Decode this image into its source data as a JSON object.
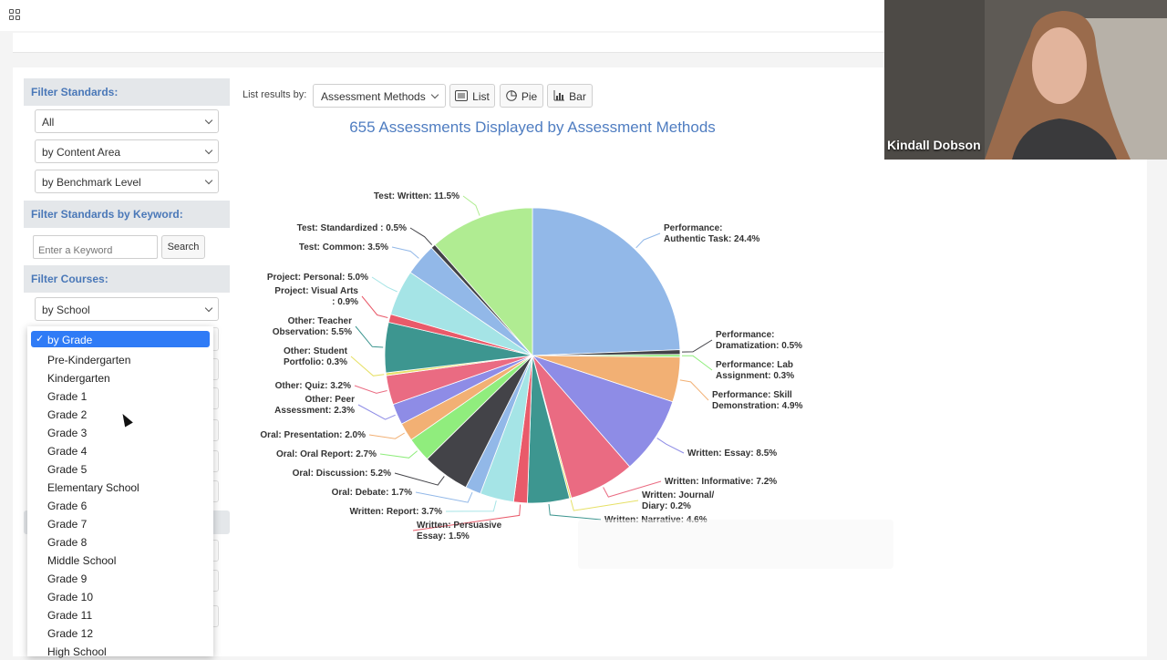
{
  "sidebar": {
    "filter_standards": {
      "heading": "Filter Standards:",
      "selects": [
        "All",
        "by Content Area",
        "by Benchmark Level"
      ]
    },
    "filter_keyword": {
      "heading": "Filter Standards by Keyword:",
      "placeholder": "Enter a Keyword",
      "button": "Search"
    },
    "filter_courses": {
      "heading": "Filter Courses:",
      "select_school": "by School"
    },
    "grade_dropdown": {
      "selected": "by Grade",
      "options": [
        "Pre-Kindergarten",
        "Kindergarten",
        "Grade 1",
        "Grade 2",
        "Grade 3",
        "Grade 4",
        "Grade 5",
        "Elementary School",
        "Grade 6",
        "Grade 7",
        "Grade 8",
        "Middle School",
        "Grade 9",
        "Grade 10",
        "Grade 11",
        "Grade 12",
        "High School"
      ]
    }
  },
  "toolbar": {
    "label": "List results by:",
    "select_value": "Assessment Methods",
    "list_label": "List",
    "pie_label": "Pie",
    "bar_label": "Bar"
  },
  "video": {
    "name": "Kindall Dobson"
  },
  "chart_data": {
    "type": "pie",
    "title": "655 Assessments Displayed by Assessment Methods",
    "slices": [
      {
        "label": [
          "Performance:",
          "Authentic Task: 24.4%"
        ],
        "value": 24.4,
        "color": "#92b8e8"
      },
      {
        "label": [
          "Performance:",
          "Dramatization: 0.5%"
        ],
        "value": 0.5,
        "color": "#434348"
      },
      {
        "label": [
          "Performance: Lab",
          "Assignment: 0.3%"
        ],
        "value": 0.3,
        "color": "#90ed7d"
      },
      {
        "label": [
          "Performance: Skill",
          "Demonstration: 4.9%"
        ],
        "value": 4.9,
        "color": "#f2b074"
      },
      {
        "label": [
          "Written: Essay: 8.5%"
        ],
        "value": 8.5,
        "color": "#8e8ce6"
      },
      {
        "label": [
          "Written: Informative: 7.2%"
        ],
        "value": 7.2,
        "color": "#ea6b82"
      },
      {
        "label": [
          "Written: Journal/",
          "Diary: 0.2%"
        ],
        "value": 0.2,
        "color": "#e6e065"
      },
      {
        "label": [
          "Written: Narrative: 4.6%"
        ],
        "value": 4.6,
        "color": "#3d9690"
      },
      {
        "label": [
          "Written: Persuasive",
          "Essay: 1.5%"
        ],
        "value": 1.5,
        "color": "#e95a6a"
      },
      {
        "label": [
          "Written: Report: 3.7%"
        ],
        "value": 3.7,
        "color": "#a5e4e6"
      },
      {
        "label": [
          "Oral: Debate: 1.7%"
        ],
        "value": 1.7,
        "color": "#92b8e8"
      },
      {
        "label": [
          "Oral: Discussion: 5.2%"
        ],
        "value": 5.2,
        "color": "#434348"
      },
      {
        "label": [
          "Oral: Oral Report: 2.7%"
        ],
        "value": 2.7,
        "color": "#90ed7d"
      },
      {
        "label": [
          "Oral: Presentation: 2.0%"
        ],
        "value": 2.0,
        "color": "#f2b074"
      },
      {
        "label": [
          "Other: Peer",
          "Assessment: 2.3%"
        ],
        "value": 2.3,
        "color": "#8e8ce6"
      },
      {
        "label": [
          "Other: Quiz: 3.2%"
        ],
        "value": 3.2,
        "color": "#ea6b82"
      },
      {
        "label": [
          "Other: Student",
          "Portfolio: 0.3%"
        ],
        "value": 0.3,
        "color": "#e6e065"
      },
      {
        "label": [
          "Other: Teacher",
          "Observation: 5.5%"
        ],
        "value": 5.5,
        "color": "#3d9690"
      },
      {
        "label": [
          "Project: Visual Arts",
          ": 0.9%"
        ],
        "value": 0.9,
        "color": "#e95a6a"
      },
      {
        "label": [
          "Project: Personal: 5.0%"
        ],
        "value": 5.0,
        "color": "#a5e4e6"
      },
      {
        "label": [
          "Test: Common: 3.5%"
        ],
        "value": 3.5,
        "color": "#92b8e8"
      },
      {
        "label": [
          "Test: Standardized : 0.5%"
        ],
        "value": 0.5,
        "color": "#434348"
      },
      {
        "label": [
          "Test: Written: 11.5%"
        ],
        "value": 11.5,
        "color": "#b0ec92"
      }
    ]
  }
}
